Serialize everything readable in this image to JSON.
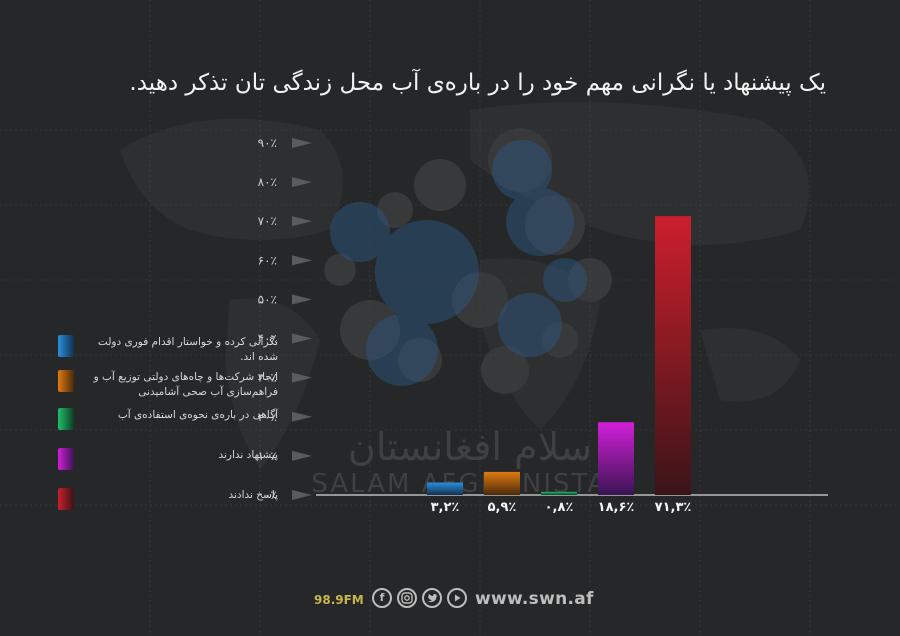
{
  "title": "یک پیشنهاد یا نگرانی مهم خود را در باره‌ی آب محل زندگی تان تذکر دهید.",
  "watermark": {
    "fa": "سلام افغانستان",
    "en": "SALAM AFGHANISTAN"
  },
  "chart_data": {
    "type": "bar",
    "categories": [
      "نگرانی کرده و خواستار اقدام فوری دولت شده اند.",
      "ایجاد شرکت‌ها و چاه‌های دولتی توزیع آب و فراهم‌سازی آب صحی آشامیدنی",
      "آگاهی در باره‌ی نحوه‌ی استفاده‌ی آب",
      "پیشنهاد ندارند",
      "پاسخ ندادند"
    ],
    "values": [
      3.2,
      5.9,
      0.8,
      18.6,
      71.3
    ],
    "value_labels": [
      "۳,۲٪",
      "۵,۹٪",
      "۰,۸٪",
      "۱۸,۶٪",
      "۷۱,۳٪"
    ],
    "colors": [
      [
        "#2a8fe0",
        "#13304d"
      ],
      [
        "#e07a10",
        "#4a2a0a"
      ],
      [
        "#1fbf6a",
        "#0d3d24"
      ],
      [
        "#d21fd8",
        "#3b1454"
      ],
      [
        "#cc1f2c",
        "#3a1418"
      ]
    ],
    "ylim": [
      0,
      90
    ],
    "yticks": [
      0,
      10,
      20,
      30,
      40,
      50,
      60,
      70,
      80,
      90
    ],
    "ytick_labels": [
      "۰٪",
      "۱۰٪",
      "۲۰٪",
      "۳۰٪",
      "۴۰٪",
      "۵۰٪",
      "۶۰٪",
      "۷۰٪",
      "۸۰٪",
      "۹۰٪"
    ],
    "grid": true,
    "legend_position": "left"
  },
  "footer": {
    "fm": "98.9FM",
    "icons": [
      "facebook-icon",
      "instagram-icon",
      "twitter-icon",
      "youtube-icon"
    ],
    "site": "www.swn.af"
  }
}
